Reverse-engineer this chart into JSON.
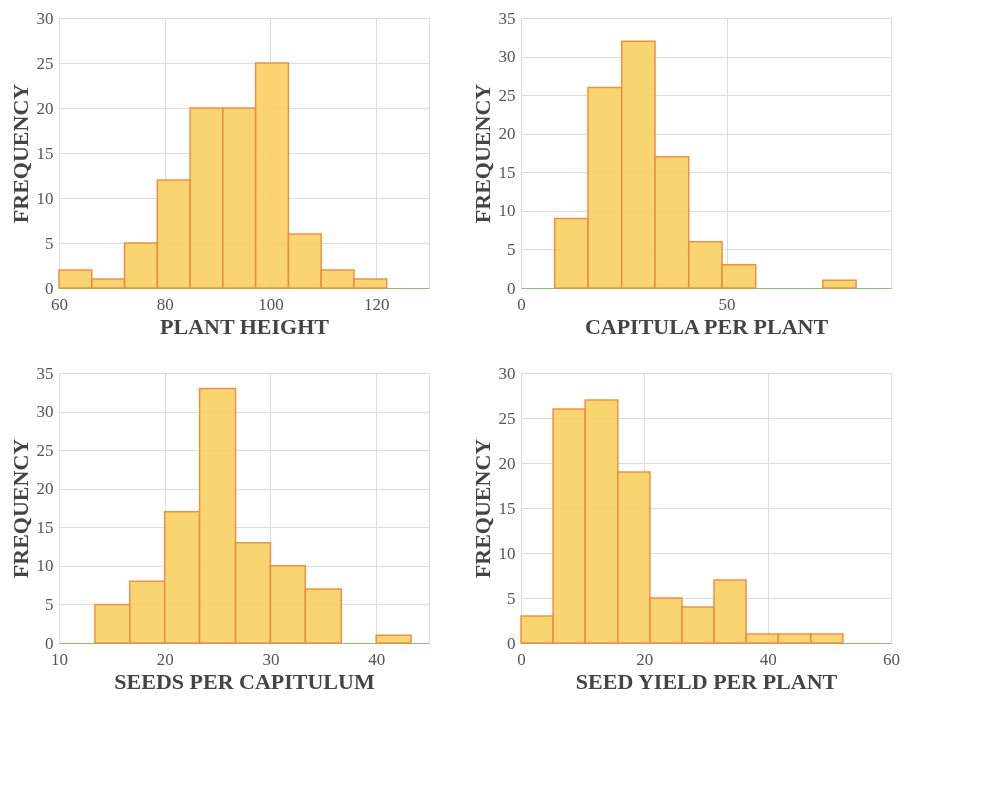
{
  "chart_data": [
    {
      "type": "histogram",
      "xlabel": "PLANT HEIGHT",
      "ylabel": "FREQUENCY",
      "color": "#f9d36b",
      "bins": [
        60,
        66.2,
        72.4,
        78.6,
        84.8,
        91,
        97.2,
        103.4,
        109.6,
        115.8,
        122
      ],
      "values": [
        2,
        1,
        5,
        12,
        20,
        20,
        25,
        6,
        2,
        1
      ],
      "xlim": [
        60,
        130
      ],
      "xticks": [
        60,
        80,
        100,
        120
      ],
      "ylim": [
        0,
        30
      ],
      "yticks": [
        0,
        5,
        10,
        15,
        20,
        25,
        30
      ],
      "grid": true
    },
    {
      "type": "histogram",
      "xlabel": "CAPITULA PER PLANT",
      "ylabel": "FREQUENCY",
      "color": "#f9d36b",
      "bins": [
        0,
        8.2,
        16.3,
        24.5,
        32.6,
        40.8,
        48.9,
        57.1,
        65.2,
        73.4,
        81.5
      ],
      "values": [
        0,
        9,
        26,
        32,
        17,
        6,
        3,
        0,
        0,
        1
      ],
      "xlim": [
        0,
        90
      ],
      "xticks": [
        0,
        50
      ],
      "ylim": [
        0,
        35
      ],
      "yticks": [
        0,
        5,
        10,
        15,
        20,
        25,
        30,
        35
      ],
      "grid": true
    },
    {
      "type": "histogram",
      "xlabel": "SEEDS PER CAPITULUM",
      "ylabel": "FREQUENCY",
      "color": "#f9d36b",
      "bins": [
        13.4,
        16.7,
        20,
        23.3,
        26.7,
        30,
        33.3,
        36.7,
        40,
        43.3
      ],
      "values": [
        5,
        8,
        17,
        33,
        13,
        10,
        7,
        0,
        1
      ],
      "xlim": [
        10,
        45
      ],
      "xticks": [
        10,
        20,
        30,
        40
      ],
      "ylim": [
        0,
        35
      ],
      "yticks": [
        0,
        5,
        10,
        15,
        20,
        25,
        30,
        35
      ],
      "grid": true
    },
    {
      "type": "histogram",
      "xlabel": "SEED YIELD PER PLANT",
      "ylabel": "FREQUENCY",
      "color": "#f9d36b",
      "bins": [
        0,
        5.2,
        10.4,
        15.7,
        20.9,
        26.1,
        31.3,
        36.5,
        41.7,
        47,
        52.2
      ],
      "values": [
        3,
        26,
        27,
        19,
        5,
        4,
        7,
        1,
        1,
        1
      ],
      "xlim": [
        0,
        60
      ],
      "xticks": [
        0,
        20,
        40,
        60
      ],
      "ylim": [
        0,
        30
      ],
      "yticks": [
        0,
        5,
        10,
        15,
        20,
        25,
        30
      ],
      "grid": true
    }
  ]
}
